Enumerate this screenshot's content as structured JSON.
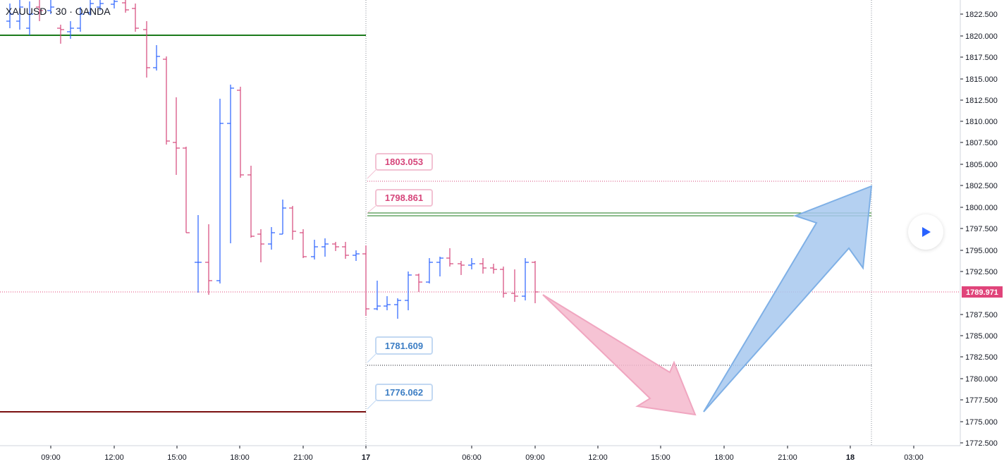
{
  "header": {
    "symbol": "XAUUSD",
    "interval": "30",
    "broker": "OANDA",
    "title": "XAUUSD · 30 · OANDA"
  },
  "colors": {
    "up": "#2962ff",
    "down": "#d6457a",
    "green_line": "#1b7a1b",
    "maroon_line": "#7a1010",
    "pink_callout": "#d6457a",
    "blue_callout": "#3b7dc4",
    "last_price_bg": "#e0447a"
  },
  "price_axis": {
    "labels": [
      "1822.500",
      "1820.000",
      "1817.500",
      "1815.000",
      "1812.500",
      "1810.000",
      "1807.500",
      "1805.000",
      "1802.500",
      "1800.000",
      "1797.500",
      "1795.000",
      "1792.500",
      "1790.000",
      "1787.500",
      "1785.000",
      "1782.500",
      "1780.000",
      "1777.500",
      "1775.000",
      "1772.500"
    ],
    "last_price": "1789.971"
  },
  "time_axis": {
    "labels": [
      "09:00",
      "12:00",
      "15:00",
      "18:00",
      "21:00",
      "17",
      "06:00",
      "09:00",
      "12:00",
      "15:00",
      "18:00",
      "21:00",
      "18",
      "03:00"
    ]
  },
  "callouts": [
    {
      "text": "1803.053",
      "color": "pink"
    },
    {
      "text": "1798.861",
      "color": "pink"
    },
    {
      "text": "1781.609",
      "color": "blue"
    },
    {
      "text": "1776.062",
      "color": "blue"
    }
  ],
  "icons": {
    "play": "play-icon"
  }
}
